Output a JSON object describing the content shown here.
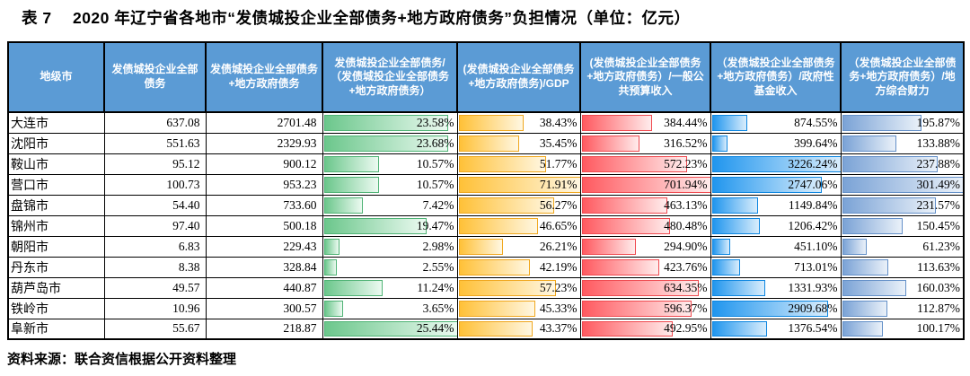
{
  "title": "表 7　 2020 年辽宁省各地市“发债城投企业全部债务+地方政府债务”负担情况（单位：亿元）",
  "source_note": "资料来源：联合资信根据公开资料整理",
  "colors": {
    "header_bg": "#5B9BD5",
    "header_text": "#FFFFFF",
    "grid_border": "#000000",
    "bar_green": "#63C384",
    "bar_yellow": "#FFB628",
    "bar_red": "#FF555A",
    "bar_blue": "#008AEF",
    "bar_steel_blue": "#638EC6"
  },
  "table": {
    "headers": [
      "地级市",
      "发债城投企业全部债务",
      "发债城投企业全部债务+地方政府债务",
      "发债城投企业全部债务/（发债城投企业全部债务+地方政府债务）",
      "(发债城投企业全部债务+地方政府债务)/GDP",
      "(发债城投企业全部债务+地方政府债务）/一般公共预算收入",
      "（发债城投企业全部债务+地方政府债务）/政府性基金收入",
      "（发债城投企业全部债务+地方政府债务）/地方综合财力"
    ],
    "rows": [
      {
        "city": "大连市",
        "cv_debt": "637.08",
        "total_debt": "2701.48",
        "share": "23.58%",
        "gdp": "38.43%",
        "budget": "384.44%",
        "fund": "874.55%",
        "fiscal": "195.87%"
      },
      {
        "city": "沈阳市",
        "cv_debt": "551.63",
        "total_debt": "2329.93",
        "share": "23.68%",
        "gdp": "35.45%",
        "budget": "316.52%",
        "fund": "399.64%",
        "fiscal": "133.88%"
      },
      {
        "city": "鞍山市",
        "cv_debt": "95.12",
        "total_debt": "900.12",
        "share": "10.57%",
        "gdp": "51.77%",
        "budget": "572.23%",
        "fund": "3226.24%",
        "fiscal": "237.88%"
      },
      {
        "city": "营口市",
        "cv_debt": "100.73",
        "total_debt": "953.23",
        "share": "10.57%",
        "gdp": "71.91%",
        "budget": "701.94%",
        "fund": "2747.06%",
        "fiscal": "301.49%"
      },
      {
        "city": "盘锦市",
        "cv_debt": "54.40",
        "total_debt": "733.60",
        "share": "7.42%",
        "gdp": "56.27%",
        "budget": "463.13%",
        "fund": "1149.84%",
        "fiscal": "231.57%"
      },
      {
        "city": "锦州市",
        "cv_debt": "97.40",
        "total_debt": "500.18",
        "share": "19.47%",
        "gdp": "46.65%",
        "budget": "480.48%",
        "fund": "1206.42%",
        "fiscal": "150.45%"
      },
      {
        "city": "朝阳市",
        "cv_debt": "6.83",
        "total_debt": "229.43",
        "share": "2.98%",
        "gdp": "26.21%",
        "budget": "294.90%",
        "fund": "451.10%",
        "fiscal": "61.23%"
      },
      {
        "city": "丹东市",
        "cv_debt": "8.38",
        "total_debt": "328.84",
        "share": "2.55%",
        "gdp": "42.19%",
        "budget": "423.76%",
        "fund": "713.01%",
        "fiscal": "113.63%"
      },
      {
        "city": "葫芦岛市",
        "cv_debt": "49.57",
        "total_debt": "440.87",
        "share": "11.24%",
        "gdp": "57.23%",
        "budget": "634.35%",
        "fund": "1331.93%",
        "fiscal": "160.03%"
      },
      {
        "city": "铁岭市",
        "cv_debt": "10.96",
        "total_debt": "300.57",
        "share": "3.65%",
        "gdp": "45.33%",
        "budget": "596.37%",
        "fund": "2909.68%",
        "fiscal": "112.87%"
      },
      {
        "city": "阜新市",
        "cv_debt": "55.67",
        "total_debt": "218.87",
        "share": "25.44%",
        "gdp": "43.37%",
        "budget": "492.95%",
        "fund": "1376.54%",
        "fiscal": "100.17%"
      }
    ]
  }
}
